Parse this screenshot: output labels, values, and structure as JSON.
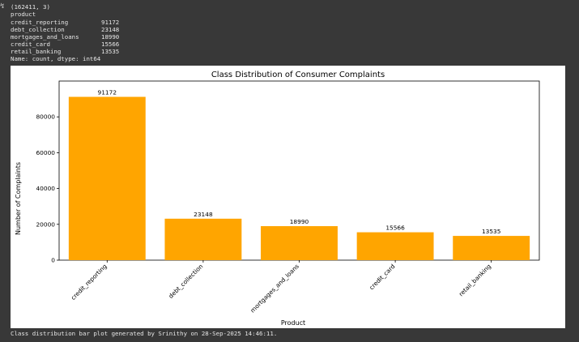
{
  "output": {
    "shape_line": "(162411, 3)",
    "series_name_line": "product",
    "value_counts": [
      {
        "label": "credit_reporting",
        "count": "91172"
      },
      {
        "label": "debt_collection",
        "count": "23148"
      },
      {
        "label": "mortgages_and_loans",
        "count": "18990"
      },
      {
        "label": "credit_card",
        "count": "15566"
      },
      {
        "label": "retail_banking",
        "count": "13535"
      }
    ],
    "dtype_line": "Name: count, dtype: int64",
    "footer": "Class distribution bar plot generated by Srinithy on 28-Sep-2025 14:46:11."
  },
  "icons": {
    "cell_output": "output-toggle-icon"
  },
  "colors": {
    "bar": "#FFA500",
    "background": "#383838"
  },
  "chart_data": {
    "type": "bar",
    "title": "Class Distribution of Consumer Complaints",
    "xlabel": "Product",
    "ylabel": "Number of Complaints",
    "categories": [
      "credit_reporting",
      "debt_collection",
      "mortgages_and_loans",
      "credit_card",
      "retail_banking"
    ],
    "values": [
      91172,
      23148,
      18990,
      15566,
      13535
    ],
    "data_labels": [
      "91172",
      "23148",
      "18990",
      "15566",
      "13535"
    ],
    "yticks": [
      0,
      20000,
      40000,
      60000,
      80000
    ],
    "ylim": [
      0,
      100000
    ],
    "grid": false,
    "legend": "none"
  }
}
